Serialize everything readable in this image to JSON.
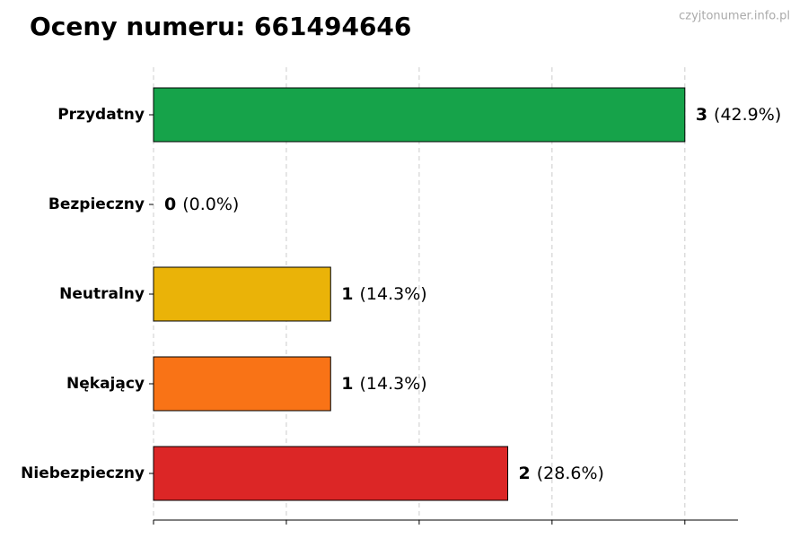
{
  "chart_data": {
    "type": "bar",
    "orientation": "horizontal",
    "title": "Oceny numeru: 661494646",
    "watermark": "czyjtonumer.info.pl",
    "categories": [
      "Przydatny",
      "Bezpieczny",
      "Neutralny",
      "Nękający",
      "Niebezpieczny"
    ],
    "values": [
      3,
      0,
      1,
      1,
      2
    ],
    "share_labels": [
      "(42.9%)",
      "(0.0%)",
      "(14.3%)",
      "(14.3%)",
      "(28.6%)"
    ],
    "colors": [
      "#16a34a",
      "#2563eb",
      "#eab308",
      "#f97316",
      "#dc2626"
    ],
    "xlim": [
      0,
      3.3
    ],
    "xticks": [
      0,
      0.75,
      1.5,
      2.25,
      3
    ],
    "grid": true
  }
}
